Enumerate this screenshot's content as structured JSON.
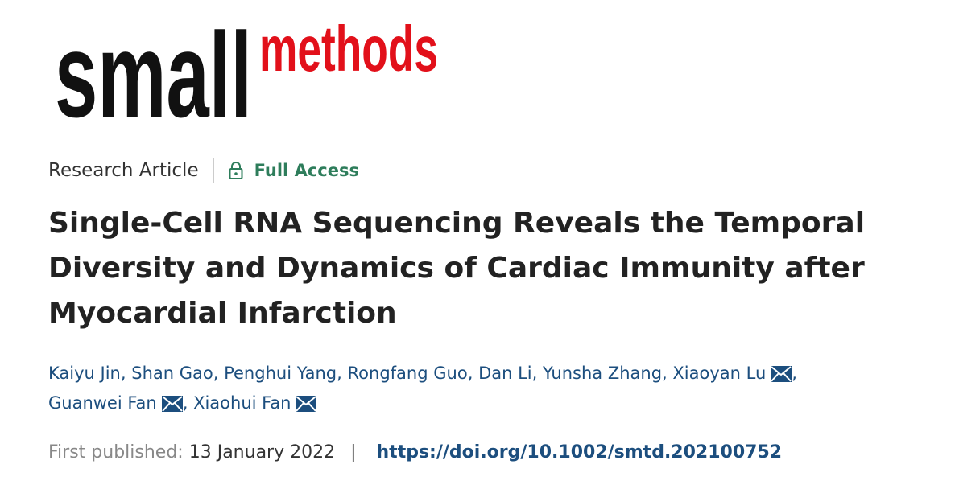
{
  "logo": {
    "left": "small",
    "right": "methods"
  },
  "article_type": "Research Article",
  "access": "Full Access",
  "title": "Single-Cell RNA Sequencing Reveals the Temporal Diversity and Dynamics of Cardiac Immunity after Myocardial Infarction",
  "authors": [
    {
      "name": "Kaiyu Jin",
      "corresponding": false
    },
    {
      "name": "Shan Gao",
      "corresponding": false
    },
    {
      "name": "Penghui Yang",
      "corresponding": false
    },
    {
      "name": "Rongfang Guo",
      "corresponding": false
    },
    {
      "name": "Dan Li",
      "corresponding": false
    },
    {
      "name": "Yunsha Zhang",
      "corresponding": false
    },
    {
      "name": "Xiaoyan Lu",
      "corresponding": true
    },
    {
      "name": "Guanwei Fan",
      "corresponding": true
    },
    {
      "name": "Xiaohui Fan",
      "corresponding": true
    }
  ],
  "author_separator": ",",
  "published": {
    "label": "First published:",
    "date": "13 January 2022",
    "separator": "|",
    "doi": "https://doi.org/10.1002/smtd.202100752"
  }
}
